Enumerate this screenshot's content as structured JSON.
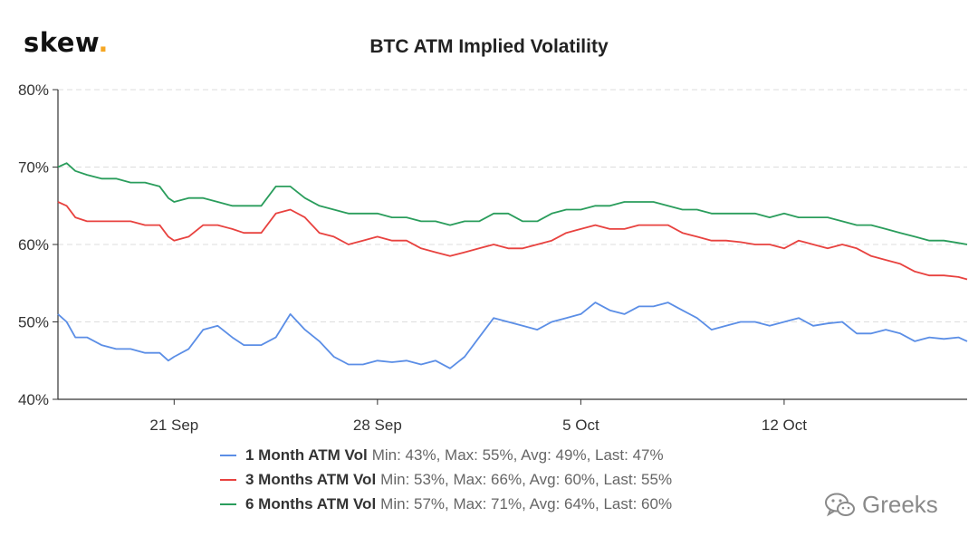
{
  "logo": {
    "text": "skew",
    "dot": "."
  },
  "watermark": {
    "text": "Greeks",
    "icon": "wechat-icon"
  },
  "colors": {
    "series_1m": "#5b8ee6",
    "series_3m": "#e8423f",
    "series_6m": "#2a9d5c",
    "grid": "#dddddd",
    "axis": "#333333",
    "logo_dot": "#f5a623"
  },
  "chart_data": {
    "type": "line",
    "title": "BTC ATM Implied Volatility",
    "xlabel": "",
    "ylabel": "",
    "x_tick_labels": [
      "21 Sep",
      "28 Sep",
      "5 Oct",
      "12 Oct"
    ],
    "x_ticks_days": [
      21,
      28,
      35,
      42
    ],
    "x_range_days": [
      17.0,
      48.3
    ],
    "y_ticks": [
      40,
      50,
      60,
      70,
      80
    ],
    "y_tick_labels": [
      "40%",
      "50%",
      "60%",
      "70%",
      "80%"
    ],
    "ylim": [
      40,
      80
    ],
    "grid": "horizontal dashed",
    "legend_position": "bottom-center",
    "series": [
      {
        "name": "1 Month ATM Vol",
        "stats": "Min: 43%, Max: 55%, Avg: 49%, Last: 47%",
        "x": [
          17.0,
          17.3,
          17.6,
          18.0,
          18.5,
          19.0,
          19.5,
          20.0,
          20.5,
          20.8,
          21.0,
          21.5,
          22.0,
          22.5,
          23.0,
          23.4,
          24.0,
          24.5,
          25.0,
          25.5,
          26.0,
          26.5,
          27.0,
          27.5,
          28.0,
          28.5,
          29.0,
          29.5,
          30.0,
          30.5,
          31.0,
          31.5,
          32.0,
          32.5,
          33.0,
          33.5,
          34.0,
          34.5,
          35.0,
          35.5,
          36.0,
          36.5,
          37.0,
          37.5,
          38.0,
          38.5,
          39.0,
          39.5,
          40.0,
          40.5,
          41.0,
          41.5,
          42.0,
          42.5,
          43.0,
          43.5,
          44.0,
          44.5,
          45.0,
          45.5,
          46.0,
          46.5,
          47.0,
          47.5,
          48.0,
          48.3
        ],
        "y": [
          51,
          50,
          48,
          48,
          47,
          46.5,
          46.5,
          46,
          46,
          45,
          45.5,
          46.5,
          49,
          49.5,
          48,
          47,
          47,
          48,
          51,
          49,
          47.5,
          45.5,
          44.5,
          44.5,
          45,
          44.8,
          45,
          44.5,
          45,
          44,
          45.5,
          48,
          50.5,
          50,
          49.5,
          49,
          50,
          50.5,
          51,
          52.5,
          51.5,
          51,
          52,
          52,
          52.5,
          51.5,
          50.5,
          49,
          49.5,
          50,
          50,
          49.5,
          50,
          50.5,
          49.5,
          49.8,
          50,
          48.5,
          48.5,
          49,
          48.5,
          47.5,
          48,
          47.8,
          48,
          47.5
        ]
      },
      {
        "name": "3 Months ATM Vol",
        "stats": "Min: 53%, Max: 66%, Avg: 60%, Last: 55%",
        "x": [
          17.0,
          17.3,
          17.6,
          18.0,
          18.5,
          19.0,
          19.5,
          20.0,
          20.5,
          20.8,
          21.0,
          21.5,
          22.0,
          22.5,
          23.0,
          23.4,
          24.0,
          24.5,
          25.0,
          25.5,
          26.0,
          26.5,
          27.0,
          27.5,
          28.0,
          28.5,
          29.0,
          29.5,
          30.0,
          30.5,
          31.0,
          31.5,
          32.0,
          32.5,
          33.0,
          33.5,
          34.0,
          34.5,
          35.0,
          35.5,
          36.0,
          36.5,
          37.0,
          37.5,
          38.0,
          38.5,
          39.0,
          39.5,
          40.0,
          40.5,
          41.0,
          41.5,
          42.0,
          42.5,
          43.0,
          43.5,
          44.0,
          44.5,
          45.0,
          45.5,
          46.0,
          46.5,
          47.0,
          47.5,
          48.0,
          48.3
        ],
        "y": [
          65.5,
          65,
          63.5,
          63,
          63,
          63,
          63,
          62.5,
          62.5,
          61,
          60.5,
          61,
          62.5,
          62.5,
          62,
          61.5,
          61.5,
          64,
          64.5,
          63.5,
          61.5,
          61,
          60,
          60.5,
          61,
          60.5,
          60.5,
          59.5,
          59,
          58.5,
          59,
          59.5,
          60,
          59.5,
          59.5,
          60,
          60.5,
          61.5,
          62,
          62.5,
          62,
          62,
          62.5,
          62.5,
          62.5,
          61.5,
          61,
          60.5,
          60.5,
          60.3,
          60,
          60,
          59.5,
          60.5,
          60,
          59.5,
          60,
          59.5,
          58.5,
          58,
          57.5,
          56.5,
          56,
          56,
          55.8,
          55.5
        ]
      },
      {
        "name": "6 Months ATM Vol",
        "stats": "Min: 57%, Max: 71%, Avg: 64%, Last: 60%",
        "x": [
          17.0,
          17.3,
          17.6,
          18.0,
          18.5,
          19.0,
          19.5,
          20.0,
          20.5,
          20.8,
          21.0,
          21.5,
          22.0,
          22.5,
          23.0,
          23.4,
          24.0,
          24.5,
          25.0,
          25.5,
          26.0,
          26.5,
          27.0,
          27.5,
          28.0,
          28.5,
          29.0,
          29.5,
          30.0,
          30.5,
          31.0,
          31.5,
          32.0,
          32.5,
          33.0,
          33.5,
          34.0,
          34.5,
          35.0,
          35.5,
          36.0,
          36.5,
          37.0,
          37.5,
          38.0,
          38.5,
          39.0,
          39.5,
          40.0,
          40.5,
          41.0,
          41.5,
          42.0,
          42.5,
          43.0,
          43.5,
          44.0,
          44.5,
          45.0,
          45.5,
          46.0,
          46.5,
          47.0,
          47.5,
          48.0,
          48.3
        ],
        "y": [
          70,
          70.5,
          69.5,
          69,
          68.5,
          68.5,
          68,
          68,
          67.5,
          66,
          65.5,
          66,
          66,
          65.5,
          65,
          65,
          65,
          67.5,
          67.5,
          66,
          65,
          64.5,
          64,
          64,
          64,
          63.5,
          63.5,
          63,
          63,
          62.5,
          63,
          63,
          64,
          64,
          63,
          63,
          64,
          64.5,
          64.5,
          65,
          65,
          65.5,
          65.5,
          65.5,
          65,
          64.5,
          64.5,
          64,
          64,
          64,
          64,
          63.5,
          64,
          63.5,
          63.5,
          63.5,
          63,
          62.5,
          62.5,
          62,
          61.5,
          61,
          60.5,
          60.5,
          60.2,
          60
        ]
      }
    ]
  }
}
